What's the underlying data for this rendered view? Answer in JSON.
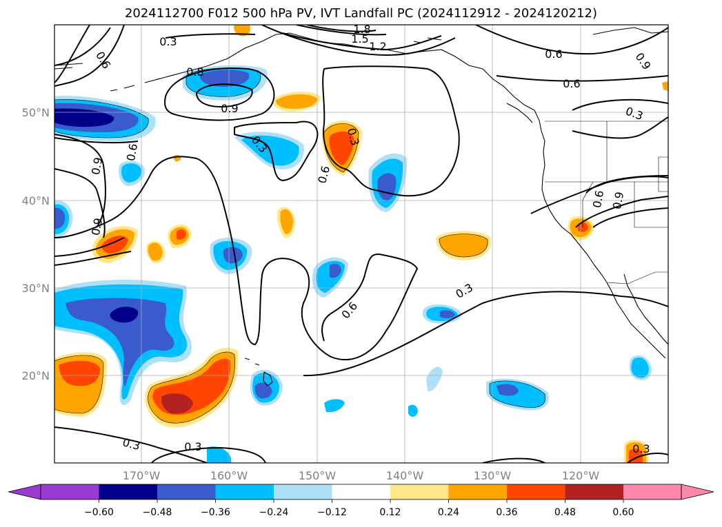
{
  "title": "2024112700 F012 500 hPa PV, IVT Landfall PC (2024112912 - 2024120212)",
  "colors": {
    "purple": "#9a3ad0",
    "navy": "#00008b",
    "royal": "#3a5bcc",
    "sky": "#00bfff",
    "lightblue": "#aee0f8",
    "white": "#ffffff",
    "lightyellow": "#ffe88c",
    "orange": "#ffa500",
    "redorange": "#ff4500",
    "firebrick": "#b22222",
    "pink": "#ff88aa"
  },
  "map": {
    "lat_labels": [
      "50°N",
      "40°N",
      "30°N",
      "20°N"
    ],
    "lon_labels": [
      "170°W",
      "160°W",
      "150°W",
      "140°W",
      "130°W",
      "120°W"
    ],
    "contour_labels": [
      "0.3",
      "1.8",
      "1.5",
      "1.2",
      "0.6",
      "0.9",
      "0.6",
      "0.8",
      "0.9",
      "0.3",
      "0.6",
      "0.3",
      "0.6",
      "0.6",
      "0.9",
      "0.6",
      "0.9",
      "0.3",
      "0.9",
      "0.3",
      "0.6",
      "0.3",
      "0.3",
      "0.3"
    ]
  },
  "colorbar": {
    "ticks": [
      "−0.60",
      "−0.48",
      "−0.36",
      "−0.24",
      "−0.12",
      "0.12",
      "0.24",
      "0.36",
      "0.48",
      "0.60"
    ]
  }
}
